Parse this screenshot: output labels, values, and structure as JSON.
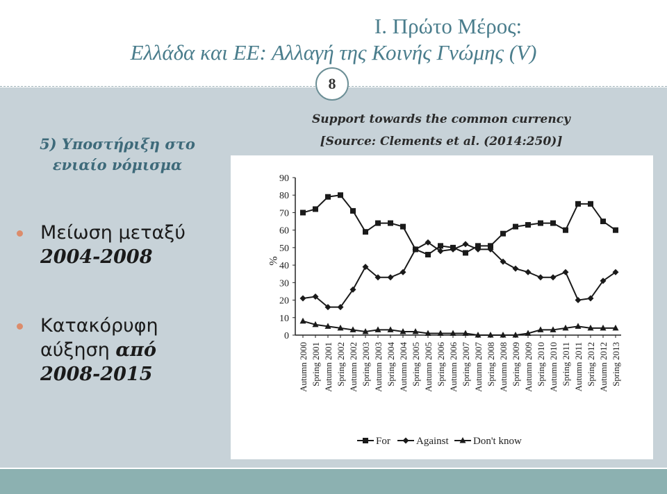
{
  "header": {
    "title_line1": "I. Πρώτο Μέρος:",
    "title_line2": "Ελλάδα και ΕΕ: Αλλαγή της Κοινής Γνώμης (V)",
    "page_number": "8"
  },
  "left": {
    "heading_line1": "5) Υποστήριξη στο",
    "heading_line2": "ενιαίο νόμισμα",
    "bullet1_line1": "Μείωση μεταξύ",
    "bullet1_line2": "2004-2008",
    "bullet2_line1": "Κατακόρυφη",
    "bullet2_line2_plain": "αύξηση ",
    "bullet2_line2_bold": "από",
    "bullet2_line3": "2008-2015"
  },
  "chart_caption": {
    "line1": "Support towards the common currency",
    "line2": "[Source: Clements et al. (2014:250)]"
  },
  "colors": {
    "accent": "#4a7d8c",
    "band": "#c7d2d8",
    "footer": "#8cb1b1",
    "bullet_dot": "#dc8c6b"
  },
  "chart_data": {
    "type": "line",
    "ylabel": "%",
    "ylim": [
      0,
      90
    ],
    "yticks": [
      "0",
      "10",
      "20",
      "30",
      "40",
      "50",
      "60",
      "70",
      "80",
      "90"
    ],
    "categories": [
      "Autumn 2000",
      "Spring 2001",
      "Autumn 2001",
      "Spring 2002",
      "Autumn 2002",
      "Spring 2003",
      "Autumn 2003",
      "Spring 2004",
      "Autumn 2004",
      "Spring 2005",
      "Autumn 2005",
      "Spring 2006",
      "Autumn 2006",
      "Spring 2007",
      "Autumn 2007",
      "Spring 2008",
      "Autumn 2008",
      "Spring 2009",
      "Autumn 2009",
      "Spring 2010",
      "Autumn 2010",
      "Spring 2011",
      "Autumn 2011",
      "Spring 2012",
      "Autumn 2012",
      "Spring 2013"
    ],
    "series": [
      {
        "name": "For",
        "marker": "square",
        "values": [
          70,
          72,
          79,
          80,
          71,
          59,
          64,
          64,
          62,
          49,
          46,
          51,
          50,
          47,
          51,
          51,
          58,
          62,
          63,
          64,
          64,
          60,
          75,
          75,
          65,
          60
        ]
      },
      {
        "name": "Against",
        "marker": "diamond",
        "values": [
          21,
          22,
          16,
          16,
          26,
          39,
          33,
          33,
          36,
          49,
          53,
          48,
          49,
          52,
          49,
          49,
          42,
          38,
          36,
          33,
          33,
          36,
          20,
          21,
          31,
          36
        ]
      },
      {
        "name": "Don't know",
        "marker": "triangle",
        "values": [
          8,
          6,
          5,
          4,
          3,
          2,
          3,
          3,
          2,
          2,
          1,
          1,
          1,
          1,
          0,
          0,
          0,
          0,
          1,
          3,
          3,
          4,
          5,
          4,
          4,
          4
        ]
      }
    ],
    "legend": [
      "For",
      "Against",
      "Don't know"
    ],
    "legend_position": "bottom"
  }
}
